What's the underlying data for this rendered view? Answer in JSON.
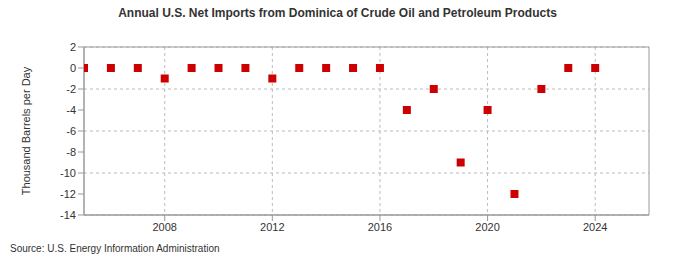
{
  "chart_data": {
    "type": "scatter",
    "title": "Annual U.S. Net Imports from Dominica of Crude Oil and Petroleum Products",
    "y_label": "Thousand Barrels per Day",
    "annotation": "Source: U.S. Energy Information Administration",
    "x": [
      2005,
      2006,
      2007,
      2008,
      2009,
      2010,
      2011,
      2012,
      2013,
      2014,
      2015,
      2016,
      2017,
      2018,
      2019,
      2020,
      2021,
      2022,
      2023,
      2024
    ],
    "values": [
      0,
      0,
      0,
      -1,
      0,
      0,
      0,
      -1,
      0,
      0,
      0,
      0,
      -4,
      -2,
      -9,
      -4,
      -12,
      -2,
      0,
      0
    ],
    "color": "#cc0000",
    "marker": "square",
    "xlim": [
      2005,
      2026
    ],
    "xticks": [
      2008,
      2012,
      2016,
      2020,
      2024
    ],
    "ylim": [
      -14,
      2
    ],
    "yticks": [
      -14,
      -12,
      -10,
      -8,
      -6,
      -4,
      -2,
      0,
      2
    ],
    "grid": true
  }
}
